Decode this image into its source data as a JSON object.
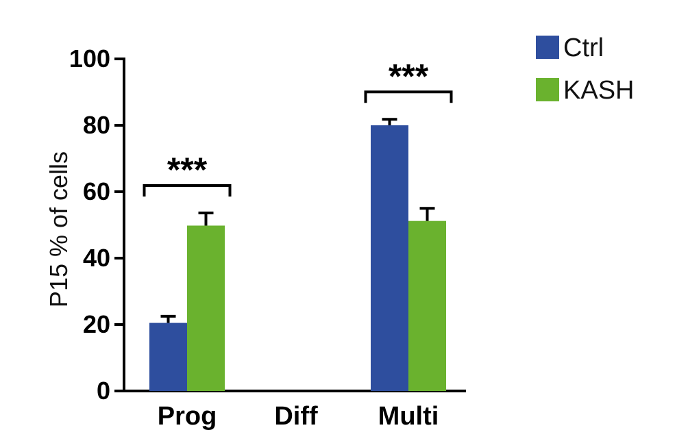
{
  "chart_data": {
    "type": "bar",
    "title": "",
    "xlabel": "",
    "ylabel": "P15 % of cells",
    "categories": [
      "Prog",
      "Diff",
      "Multi"
    ],
    "series": [
      {
        "name": "Ctrl",
        "color": "#2E4E9E",
        "values": [
          20.5,
          0,
          80.0
        ],
        "errors": [
          2.0,
          0,
          1.8
        ]
      },
      {
        "name": "KASH",
        "color": "#6AB22E",
        "values": [
          49.8,
          0,
          51.2
        ],
        "errors": [
          3.8,
          0,
          3.8
        ]
      }
    ],
    "ylim": [
      0,
      100
    ],
    "yticks": [
      0,
      20,
      40,
      60,
      80,
      100
    ],
    "grid": false,
    "legend": "top-right",
    "annotations": [
      {
        "category": "Prog",
        "text": "***"
      },
      {
        "category": "Multi",
        "text": "***"
      }
    ]
  }
}
